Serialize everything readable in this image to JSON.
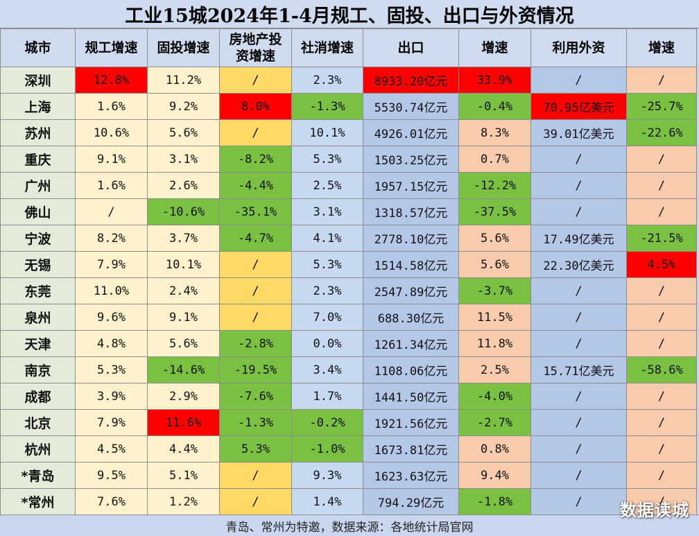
{
  "title": "工业15城2024年1-4月规工、固投、出口与外资情况",
  "headers": [
    "城市",
    "规工增速",
    "固投增速",
    "房地产投资增速",
    "社消增速",
    "出口",
    "增速",
    "利用外资",
    "增速"
  ],
  "rows": [
    {
      "city": "深圳",
      "ind": "12.8%",
      "fai": "11.2%",
      "re": "/",
      "retail": "2.3%",
      "exp": "8933.20亿元",
      "expg": "33.9%",
      "fdi": "/",
      "fdig": "/"
    },
    {
      "city": "上海",
      "ind": "1.6%",
      "fai": "9.2%",
      "re": "8.0%",
      "retail": "-1.3%",
      "exp": "5530.74亿元",
      "expg": "-0.4%",
      "fdi": "70.95亿美元",
      "fdig": "-25.7%"
    },
    {
      "city": "苏州",
      "ind": "10.6%",
      "fai": "5.6%",
      "re": "/",
      "retail": "10.1%",
      "exp": "4926.01亿元",
      "expg": "8.3%",
      "fdi": "39.01亿美元",
      "fdig": "-22.6%"
    },
    {
      "city": "重庆",
      "ind": "9.1%",
      "fai": "3.1%",
      "re": "-8.2%",
      "retail": "5.3%",
      "exp": "1503.25亿元",
      "expg": "0.7%",
      "fdi": "/",
      "fdig": "/"
    },
    {
      "city": "广州",
      "ind": "1.6%",
      "fai": "2.6%",
      "re": "-4.4%",
      "retail": "2.5%",
      "exp": "1957.15亿元",
      "expg": "-12.2%",
      "fdi": "/",
      "fdig": "/"
    },
    {
      "city": "佛山",
      "ind": "/",
      "fai": "-10.6%",
      "re": "-35.1%",
      "retail": "3.1%",
      "exp": "1318.57亿元",
      "expg": "-37.5%",
      "fdi": "/",
      "fdig": "/"
    },
    {
      "city": "宁波",
      "ind": "8.2%",
      "fai": "3.7%",
      "re": "-4.7%",
      "retail": "4.1%",
      "exp": "2778.10亿元",
      "expg": "5.6%",
      "fdi": "17.49亿美元",
      "fdig": "-21.5%"
    },
    {
      "city": "无锡",
      "ind": "7.9%",
      "fai": "10.1%",
      "re": "/",
      "retail": "5.3%",
      "exp": "1514.58亿元",
      "expg": "5.6%",
      "fdi": "22.30亿美元",
      "fdig": "4.5%"
    },
    {
      "city": "东莞",
      "ind": "11.0%",
      "fai": "2.4%",
      "re": "/",
      "retail": "2.3%",
      "exp": "2547.89亿元",
      "expg": "-3.7%",
      "fdi": "/",
      "fdig": "/"
    },
    {
      "city": "泉州",
      "ind": "9.6%",
      "fai": "9.1%",
      "re": "/",
      "retail": "7.0%",
      "exp": "688.30亿元",
      "expg": "11.5%",
      "fdi": "/",
      "fdig": "/"
    },
    {
      "city": "天津",
      "ind": "4.8%",
      "fai": "5.6%",
      "re": "-2.8%",
      "retail": "0.0%",
      "exp": "1261.34亿元",
      "expg": "11.8%",
      "fdi": "/",
      "fdig": "/"
    },
    {
      "city": "南京",
      "ind": "5.3%",
      "fai": "-14.6%",
      "re": "-19.5%",
      "retail": "3.4%",
      "exp": "1108.06亿元",
      "expg": "2.5%",
      "fdi": "15.71亿美元",
      "fdig": "-58.6%"
    },
    {
      "city": "成都",
      "ind": "3.9%",
      "fai": "2.9%",
      "re": "-7.6%",
      "retail": "1.7%",
      "exp": "1441.50亿元",
      "expg": "-4.0%",
      "fdi": "/",
      "fdig": "/"
    },
    {
      "city": "北京",
      "ind": "7.9%",
      "fai": "11.6%",
      "re": "-1.3%",
      "retail": "-0.2%",
      "exp": "1921.56亿元",
      "expg": "-2.7%",
      "fdi": "/",
      "fdig": "/"
    },
    {
      "city": "杭州",
      "ind": "4.5%",
      "fai": "4.4%",
      "re": "5.3%",
      "retail": "-1.0%",
      "exp": "1673.81亿元",
      "expg": "0.8%",
      "fdi": "/",
      "fdig": "/"
    },
    {
      "city": "*青岛",
      "ind": "9.5%",
      "fai": "5.1%",
      "re": "/",
      "retail": "9.3%",
      "exp": "1623.63亿元",
      "expg": "9.4%",
      "fdi": "/",
      "fdig": "/"
    },
    {
      "city": "*常州",
      "ind": "7.6%",
      "fai": "1.2%",
      "re": "/",
      "retail": "1.4%",
      "exp": "794.29亿元",
      "expg": "-1.8%",
      "fdi": "/",
      "fdig": "/"
    }
  ],
  "footer": "青岛、常州为特邀，数据来源：各地统计局官网",
  "watermark": "数据读城",
  "colors": {
    "highlight_high": "#ff0000",
    "highlight_low": "#7ac142",
    "ind_col": "#fff2cc",
    "fai_col": "#fff2cc",
    "re_col": "#ffd966",
    "retail_col": "#c6d9f1",
    "exp_col": "#c6d9f1",
    "expg_col": "#f8cbad",
    "fdi_col": "#b4c7e7",
    "fdig_col": "#f8cbad",
    "city_col": "#e3ecd9"
  }
}
